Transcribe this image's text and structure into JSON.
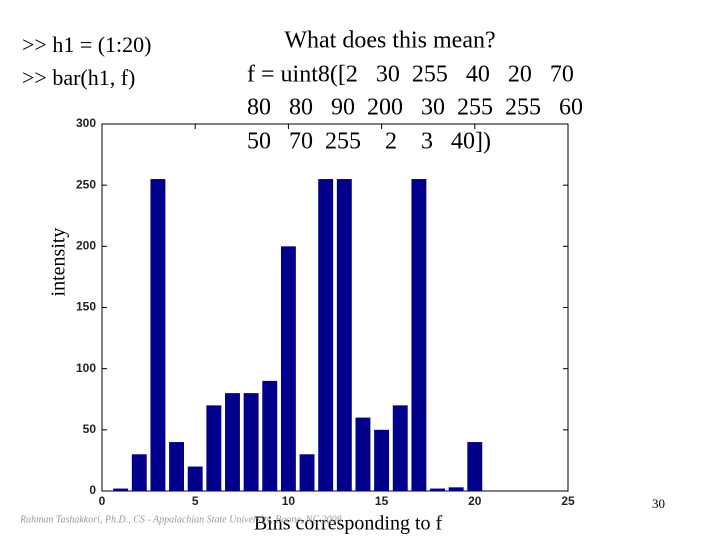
{
  "slide": {
    "code_lines": [
      ">> h1 = (1:20)",
      ">> bar(h1, f)"
    ],
    "question": "What does this mean?",
    "statement_lines": [
      "f = uint8([2   30  255   40   20   70",
      "80   80   90  200   30  255  255   60",
      "50   70  255    2    3   40])"
    ],
    "footer": "Rahman Tashakkori, Ph.D., CS - Appalachian State University, Boone, NC 2008",
    "page_number": "30"
  },
  "chart_data": {
    "type": "bar",
    "x": [
      1,
      2,
      3,
      4,
      5,
      6,
      7,
      8,
      9,
      10,
      11,
      12,
      13,
      14,
      15,
      16,
      17,
      18,
      19,
      20
    ],
    "values": [
      2,
      30,
      255,
      40,
      20,
      70,
      80,
      80,
      90,
      200,
      30,
      255,
      255,
      60,
      50,
      70,
      255,
      2,
      3,
      40
    ],
    "color": "#00008c",
    "xlim": [
      0,
      25
    ],
    "xticks": [
      0,
      5,
      10,
      15,
      20,
      25
    ],
    "ylim": [
      0,
      300
    ],
    "yticks": [
      0,
      50,
      100,
      150,
      200,
      250,
      300
    ],
    "ylabel": "intensity",
    "xlabel": "Bins corresponding to f"
  }
}
